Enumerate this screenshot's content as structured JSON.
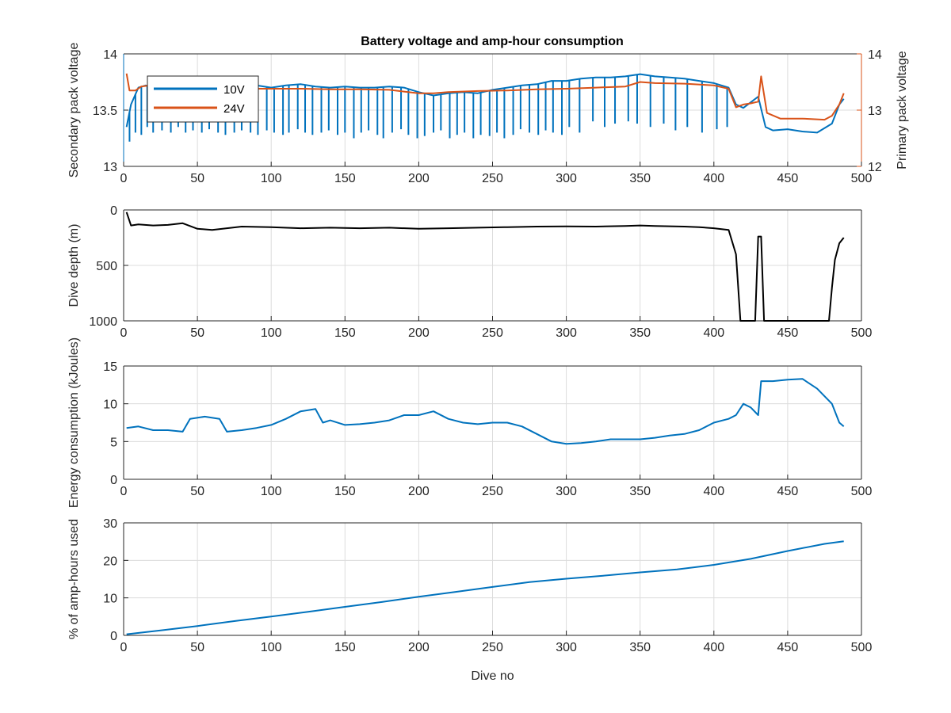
{
  "colors": {
    "series_10v": "#0072BD",
    "series_24v": "#D95319",
    "depth": "#000000",
    "energy": "#0072BD",
    "amphours": "#0072BD",
    "axis": "#262626",
    "grid": "#dcdcdc"
  },
  "chart_data": [
    {
      "id": "voltage",
      "type": "line",
      "title": "Battery voltage and amp-hour consumption",
      "xlabel": "",
      "ylabel": "Secondary pack voltage",
      "ylabel_right": "Primary pack voltage",
      "xlim": [
        0,
        500
      ],
      "ylim": [
        13,
        14
      ],
      "ylim_right": [
        12,
        14
      ],
      "xticks": [
        0,
        50,
        100,
        150,
        200,
        250,
        300,
        350,
        400,
        450,
        500
      ],
      "yticks": [
        13,
        13.5,
        14
      ],
      "yticks_right": [
        12,
        13,
        14
      ],
      "grid": true,
      "legend": "top-left",
      "series": [
        {
          "name": "10V",
          "axis": "left",
          "x": [
            2,
            5,
            10,
            15,
            20,
            30,
            40,
            50,
            60,
            70,
            80,
            90,
            100,
            110,
            120,
            130,
            140,
            150,
            160,
            170,
            180,
            190,
            200,
            210,
            220,
            230,
            240,
            250,
            260,
            270,
            280,
            290,
            300,
            310,
            320,
            330,
            340,
            350,
            360,
            370,
            380,
            390,
            400,
            410,
            415,
            420,
            430,
            435,
            440,
            450,
            460,
            470,
            480,
            485,
            488
          ],
          "y": [
            13.35,
            13.55,
            13.7,
            13.72,
            13.7,
            13.68,
            13.66,
            13.68,
            13.67,
            13.7,
            13.72,
            13.72,
            13.7,
            13.72,
            13.73,
            13.71,
            13.7,
            13.71,
            13.7,
            13.7,
            13.71,
            13.7,
            13.66,
            13.63,
            13.65,
            13.66,
            13.65,
            13.68,
            13.7,
            13.72,
            13.73,
            13.76,
            13.76,
            13.78,
            13.79,
            13.79,
            13.8,
            13.82,
            13.8,
            13.79,
            13.78,
            13.76,
            13.74,
            13.7,
            13.55,
            13.52,
            13.62,
            13.35,
            13.32,
            13.33,
            13.31,
            13.3,
            13.38,
            13.55,
            13.6
          ],
          "dips_x": [
            4,
            8,
            12,
            16,
            20,
            26,
            32,
            37,
            42,
            47,
            53,
            58,
            64,
            69,
            75,
            80,
            86,
            91,
            97,
            102,
            108,
            112,
            118,
            123,
            128,
            134,
            139,
            145,
            150,
            156,
            161,
            166,
            172,
            176,
            182,
            188,
            193,
            199,
            204,
            210,
            215,
            221,
            226,
            231,
            237,
            242,
            248,
            253,
            258,
            264,
            269,
            275,
            281,
            286,
            291,
            297,
            302,
            309,
            318,
            326,
            333,
            342,
            348,
            357,
            366,
            374,
            382,
            392,
            402,
            409
          ],
          "dips_y": [
            13.22,
            13.3,
            13.28,
            13.35,
            13.3,
            13.32,
            13.3,
            13.35,
            13.3,
            13.32,
            13.3,
            13.33,
            13.3,
            13.28,
            13.3,
            13.32,
            13.3,
            13.28,
            13.32,
            13.3,
            13.28,
            13.3,
            13.33,
            13.3,
            13.28,
            13.3,
            13.32,
            13.28,
            13.3,
            13.25,
            13.3,
            13.32,
            13.28,
            13.25,
            13.3,
            13.33,
            13.28,
            13.25,
            13.27,
            13.3,
            13.32,
            13.25,
            13.28,
            13.3,
            13.25,
            13.28,
            13.27,
            13.3,
            13.25,
            13.28,
            13.33,
            13.3,
            13.28,
            13.32,
            13.3,
            13.28,
            13.35,
            13.3,
            13.4,
            13.35,
            13.38,
            13.4,
            13.38,
            13.35,
            13.38,
            13.32,
            13.35,
            13.3,
            13.33,
            13.35
          ]
        },
        {
          "name": "24V",
          "axis": "right",
          "x": [
            2,
            4,
            8,
            12,
            20,
            40,
            60,
            80,
            100,
            120,
            140,
            160,
            180,
            190,
            200,
            210,
            220,
            240,
            260,
            280,
            300,
            320,
            340,
            350,
            360,
            380,
            400,
            410,
            415,
            420,
            425,
            430,
            432,
            436,
            445,
            460,
            475,
            480,
            485,
            488
          ],
          "y": [
            13.65,
            13.35,
            13.35,
            13.42,
            13.45,
            13.43,
            13.4,
            13.38,
            13.38,
            13.38,
            13.37,
            13.37,
            13.36,
            13.33,
            13.3,
            13.3,
            13.32,
            13.34,
            13.35,
            13.37,
            13.38,
            13.4,
            13.42,
            13.5,
            13.48,
            13.47,
            13.44,
            13.38,
            13.05,
            13.1,
            13.12,
            13.15,
            13.6,
            12.95,
            12.85,
            12.85,
            12.83,
            12.9,
            13.1,
            13.3
          ]
        }
      ]
    },
    {
      "id": "depth",
      "type": "line",
      "title": "",
      "xlabel": "",
      "ylabel": "Dive depth (m)",
      "xlim": [
        0,
        500
      ],
      "ylim": [
        0,
        1000
      ],
      "y_reversed": true,
      "xticks": [
        0,
        50,
        100,
        150,
        200,
        250,
        300,
        350,
        400,
        450,
        500
      ],
      "yticks": [
        0,
        500,
        1000
      ],
      "grid": true,
      "series": [
        {
          "x": [
            2,
            5,
            10,
            20,
            30,
            40,
            50,
            60,
            80,
            100,
            120,
            140,
            160,
            180,
            200,
            220,
            240,
            260,
            280,
            300,
            320,
            340,
            350,
            360,
            380,
            390,
            400,
            410,
            415,
            418,
            420,
            425,
            428,
            430,
            432,
            434,
            440,
            460,
            478,
            480,
            482,
            485,
            488
          ],
          "y": [
            20,
            140,
            130,
            140,
            135,
            120,
            170,
            180,
            150,
            155,
            165,
            160,
            165,
            160,
            170,
            165,
            160,
            155,
            150,
            148,
            150,
            145,
            140,
            145,
            150,
            155,
            165,
            180,
            400,
            1000,
            1000,
            1000,
            1000,
            240,
            240,
            1000,
            1000,
            1000,
            1000,
            700,
            450,
            300,
            250
          ]
        }
      ]
    },
    {
      "id": "energy",
      "type": "line",
      "title": "",
      "xlabel": "",
      "ylabel": "Energy consumption (kJoules)",
      "xlim": [
        0,
        500
      ],
      "ylim": [
        0,
        15
      ],
      "xticks": [
        0,
        50,
        100,
        150,
        200,
        250,
        300,
        350,
        400,
        450,
        500
      ],
      "yticks": [
        0,
        5,
        10,
        15
      ],
      "grid": true,
      "series": [
        {
          "x": [
            2,
            10,
            20,
            30,
            40,
            45,
            55,
            65,
            70,
            80,
            90,
            100,
            110,
            120,
            130,
            135,
            140,
            150,
            160,
            170,
            180,
            190,
            200,
            210,
            220,
            230,
            240,
            250,
            260,
            270,
            280,
            290,
            300,
            310,
            320,
            330,
            340,
            350,
            360,
            370,
            380,
            390,
            400,
            410,
            415,
            420,
            425,
            430,
            432,
            440,
            450,
            460,
            470,
            480,
            485,
            488
          ],
          "y": [
            6.8,
            7,
            6.5,
            6.5,
            6.3,
            8,
            8.3,
            8,
            6.3,
            6.5,
            6.8,
            7.2,
            8,
            9,
            9.3,
            7.5,
            7.8,
            7.2,
            7.3,
            7.5,
            7.8,
            8.5,
            8.5,
            9,
            8,
            7.5,
            7.3,
            7.5,
            7.5,
            7,
            6,
            5,
            4.7,
            4.8,
            5,
            5.3,
            5.3,
            5.3,
            5.5,
            5.8,
            6,
            6.5,
            7.5,
            8,
            8.5,
            10,
            9.5,
            8.5,
            13,
            13,
            13.2,
            13.3,
            12,
            10,
            7.5,
            7
          ]
        }
      ]
    },
    {
      "id": "amphours",
      "type": "line",
      "title": "",
      "xlabel": "Dive no",
      "ylabel": "% of amp-hours used",
      "xlim": [
        0,
        500
      ],
      "ylim": [
        0,
        30
      ],
      "xticks": [
        0,
        50,
        100,
        150,
        200,
        250,
        300,
        350,
        400,
        450,
        500
      ],
      "yticks": [
        0,
        10,
        20,
        30
      ],
      "grid": true,
      "series": [
        {
          "x": [
            2,
            25,
            50,
            75,
            100,
            125,
            150,
            175,
            200,
            225,
            250,
            275,
            300,
            325,
            350,
            375,
            400,
            425,
            450,
            475,
            488
          ],
          "y": [
            0.3,
            1.3,
            2.5,
            3.8,
            5,
            6.3,
            7.6,
            8.9,
            10.3,
            11.6,
            12.9,
            14.2,
            15.1,
            15.9,
            16.8,
            17.6,
            18.8,
            20.4,
            22.5,
            24.4,
            25.1
          ]
        }
      ]
    }
  ]
}
